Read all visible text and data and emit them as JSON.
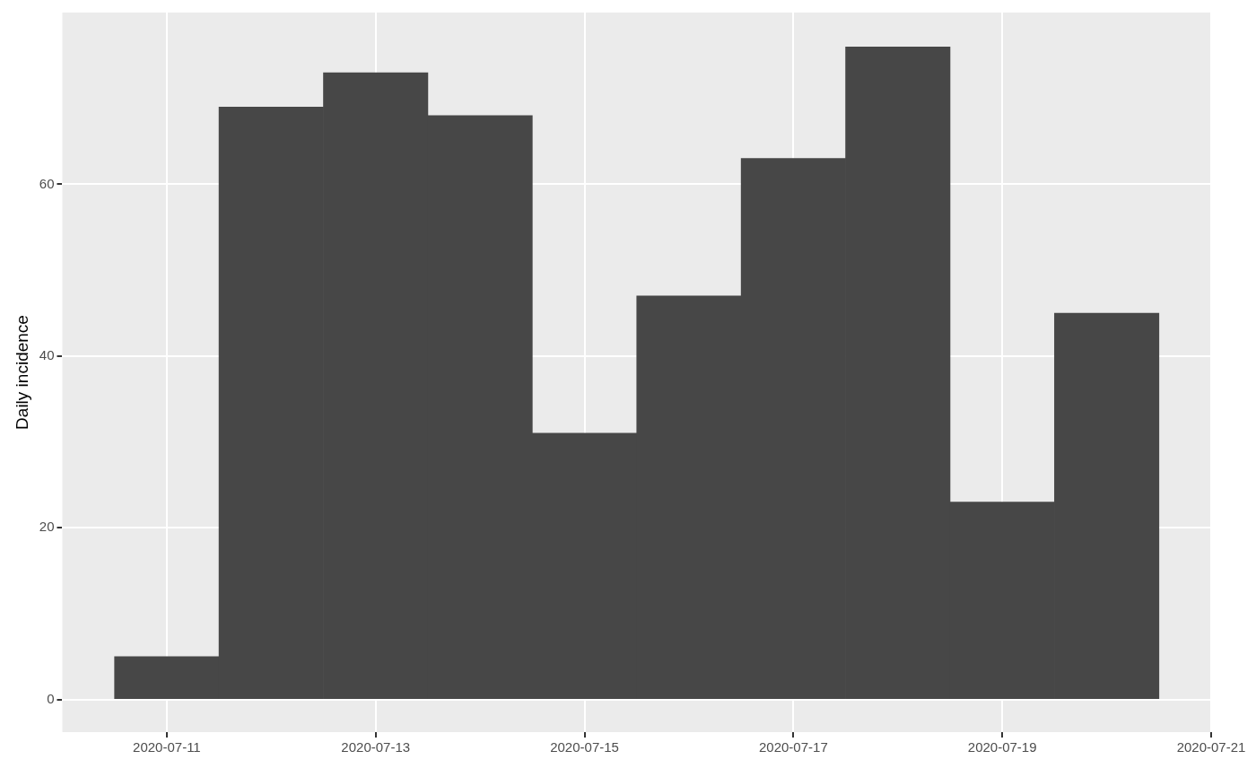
{
  "chart_data": {
    "type": "bar",
    "ylabel": "Daily incidence",
    "x": [
      "2020-07-11",
      "2020-07-12",
      "2020-07-13",
      "2020-07-14",
      "2020-07-15",
      "2020-07-16",
      "2020-07-17",
      "2020-07-18",
      "2020-07-19",
      "2020-07-20"
    ],
    "values": [
      5,
      69,
      73,
      68,
      31,
      47,
      63,
      76,
      23,
      45
    ],
    "color": "#474747",
    "xlim": [
      "2020-07-10",
      "2020-07-21"
    ],
    "xticks": [
      "2020-07-11",
      "2020-07-13",
      "2020-07-15",
      "2020-07-17",
      "2020-07-19",
      "2020-07-21"
    ],
    "ylim": [
      -3.8,
      80
    ],
    "yticks": [
      0,
      20,
      40,
      60
    ],
    "grid": true,
    "legend": false
  }
}
